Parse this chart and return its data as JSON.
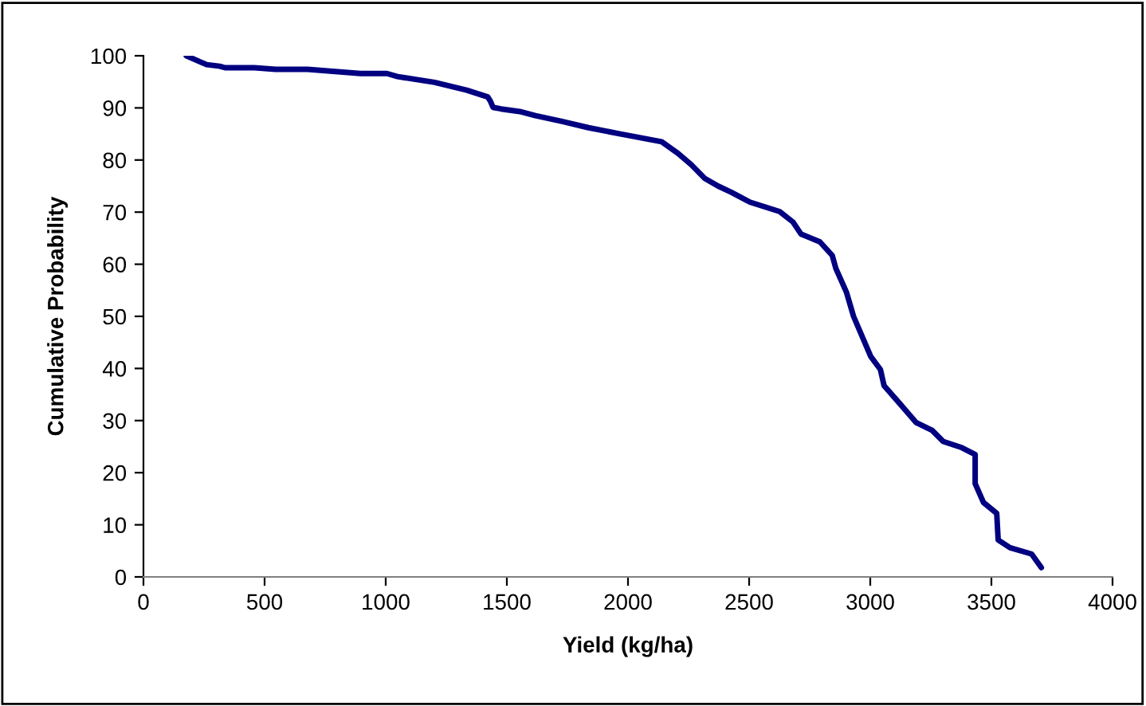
{
  "chart_data": {
    "type": "line",
    "xlabel": "Yield (kg/ha)",
    "ylabel": "Cumulative Probability",
    "xlim": [
      0,
      4000
    ],
    "ylim": [
      0,
      100
    ],
    "xticks": [
      0,
      500,
      1000,
      1500,
      2000,
      2500,
      3000,
      3500,
      4000
    ],
    "yticks": [
      0,
      10,
      20,
      30,
      40,
      50,
      60,
      70,
      80,
      90,
      100
    ],
    "grid": false,
    "marker": "none",
    "line_style": "solid",
    "series": [
      {
        "color": "#000080",
        "x": [
          177,
          261,
          315,
          337,
          458,
          545,
          677,
          896,
          1005,
          1049,
          1202,
          1334,
          1421,
          1432,
          1443,
          1476,
          1553,
          1618,
          1728,
          1837,
          1969,
          2139,
          2206,
          2261,
          2316,
          2372,
          2427,
          2504,
          2626,
          2681,
          2714,
          2792,
          2843,
          2858,
          2902,
          2931,
          3002,
          3042,
          3057,
          3123,
          3190,
          3256,
          3301,
          3378,
          3433,
          3433,
          3467,
          3522,
          3528,
          3577,
          3666,
          3706
        ],
        "values": [
          100,
          98.3,
          98,
          97.7,
          97.7,
          97.4,
          97.4,
          96.6,
          96.6,
          96,
          94.9,
          93.4,
          92.1,
          91.3,
          90.1,
          89.8,
          89.3,
          88.5,
          87.4,
          86.2,
          85,
          83.5,
          81.3,
          79.1,
          76.5,
          75,
          73.8,
          71.9,
          70.1,
          68.1,
          65.8,
          64.3,
          61.7,
          59.2,
          54.6,
          50,
          42.3,
          39.8,
          36.7,
          33.2,
          29.6,
          28.1,
          26,
          24.8,
          23.5,
          17.9,
          14.3,
          12.2,
          7.1,
          5.6,
          4.4,
          1.8
        ]
      }
    ]
  }
}
